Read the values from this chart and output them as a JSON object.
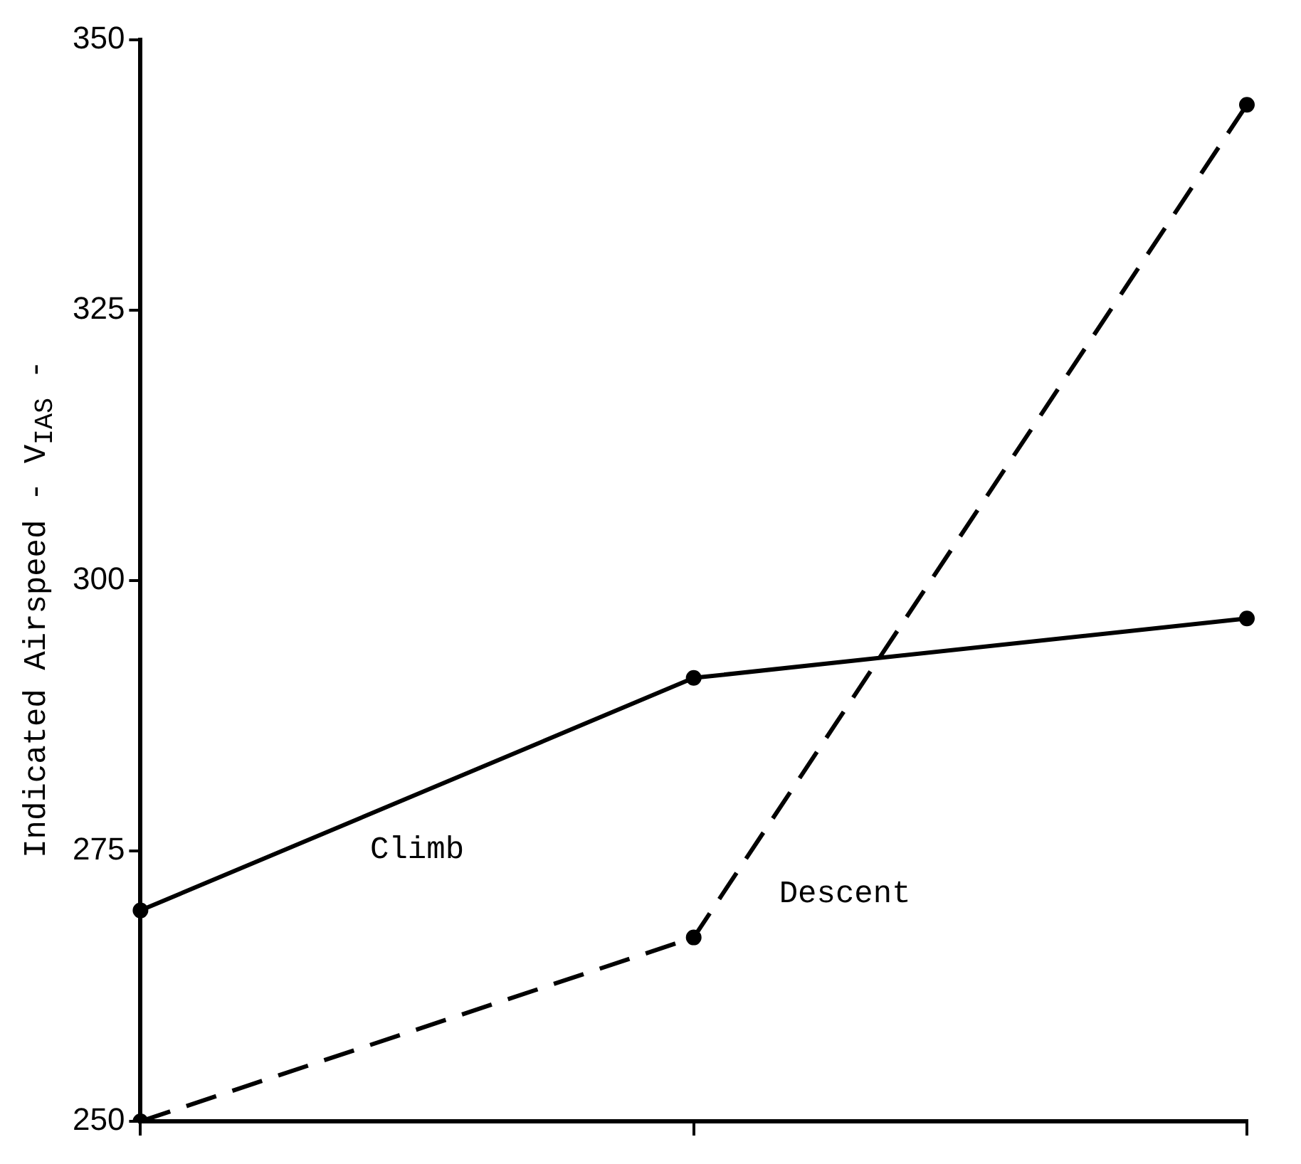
{
  "chart_data": {
    "type": "line",
    "ylabel": "Indicated Airspeed - V$_{IAS}$ -",
    "categories": [
      null,
      null,
      null
    ],
    "series": [
      {
        "name": "Climb",
        "color": "#000000",
        "values": [
          269.5,
          291,
          296.5
        ],
        "line_style": "solid"
      },
      {
        "name": "Descent",
        "color": "#000000",
        "values": [
          250,
          267,
          344
        ],
        "line_style": "dashed"
      }
    ],
    "ylim": [
      250,
      350
    ],
    "yticks": [
      250,
      275,
      300,
      325,
      350
    ],
    "grid": false,
    "legend": false,
    "marker": "circle",
    "tick_labels": "y"
  }
}
